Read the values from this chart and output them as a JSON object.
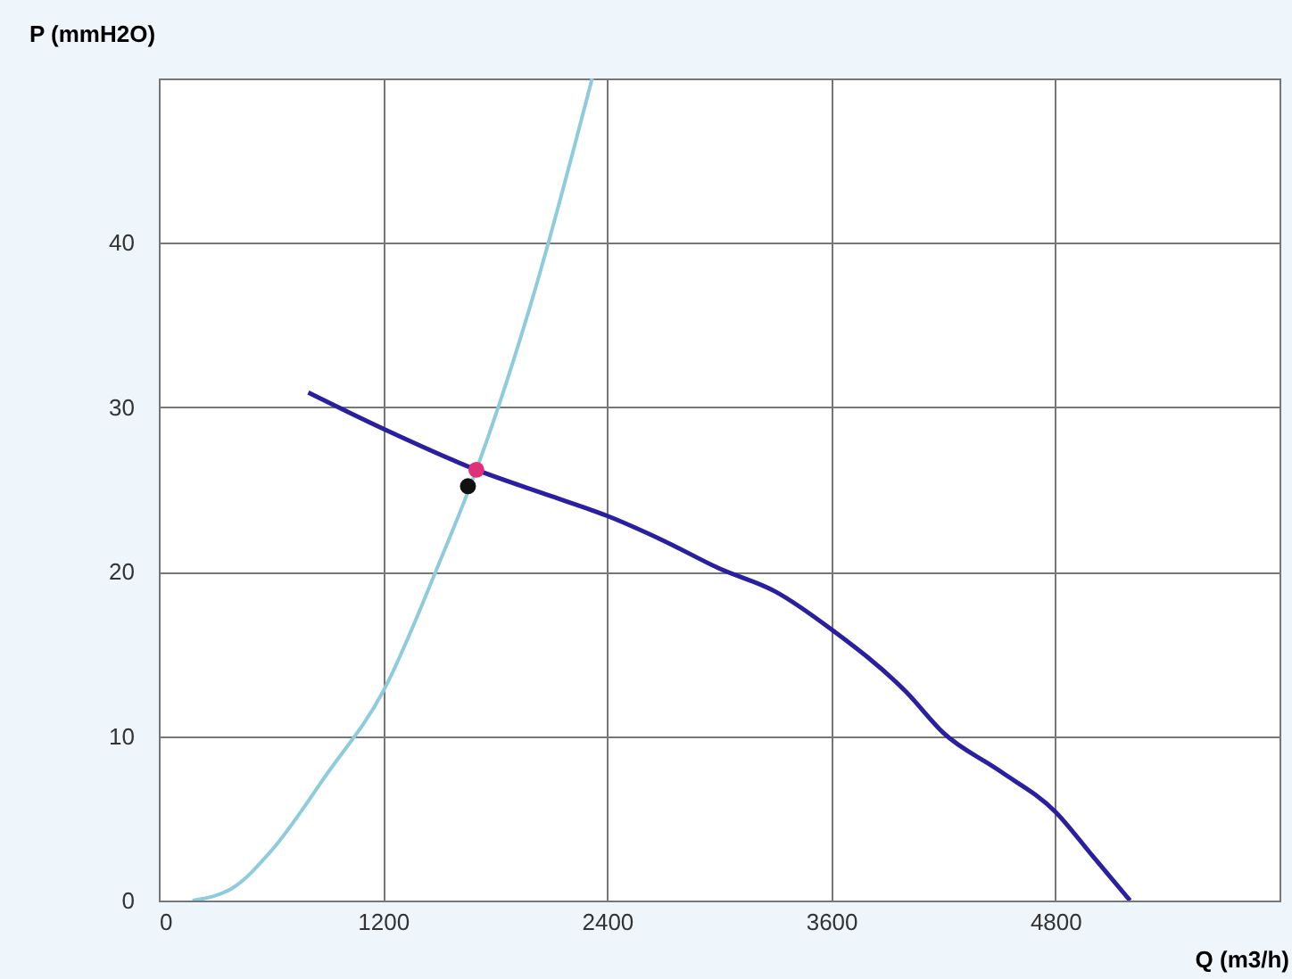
{
  "chart_data": {
    "type": "line",
    "xlabel": "Q (m3/h)",
    "ylabel": "P (mmH2O)",
    "xlim": [
      0,
      6000
    ],
    "ylim": [
      0,
      50
    ],
    "xticks": [
      0,
      1200,
      2400,
      3600,
      4800
    ],
    "yticks": [
      0,
      10,
      20,
      30,
      40
    ],
    "grid": true,
    "series": [
      {
        "color": "#8ecbdc",
        "x": [
          180,
          400,
          600,
          900,
          1200,
          1500,
          1700,
          2000,
          2320
        ],
        "values": [
          0,
          0.8,
          3,
          7.7,
          12.7,
          20.5,
          26.2,
          36.6,
          50
        ]
      },
      {
        "color": "#2a1fa0",
        "x": [
          800,
          1200,
          1700,
          2100,
          2400,
          2700,
          3000,
          3300,
          3600,
          4000,
          4200,
          4500,
          4800,
          5000,
          5200
        ],
        "values": [
          30.9,
          28.7,
          26.2,
          24.6,
          23.4,
          21.9,
          20.2,
          18.8,
          16.5,
          12.7,
          10.2,
          7.9,
          5.4,
          2.7,
          0
        ]
      },
      {
        "type": "scatter",
        "color": "#e0307a",
        "x": [
          1700
        ],
        "values": [
          26.2
        ]
      },
      {
        "type": "scatter",
        "color": "#111111",
        "x": [
          1655
        ],
        "values": [
          25.2
        ]
      }
    ]
  }
}
